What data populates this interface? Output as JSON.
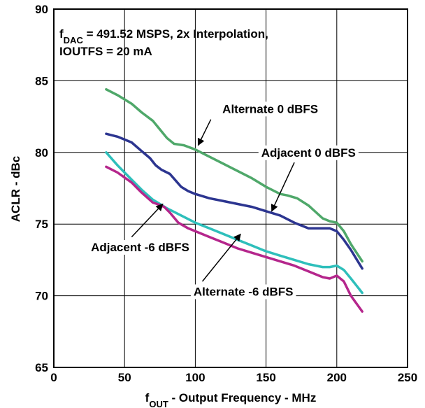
{
  "chart_data": {
    "type": "line",
    "title_lines": [
      {
        "main": "f",
        "sub": "DAC",
        "rest": " = 491.52 MSPS, 2x Interpolation,"
      },
      {
        "main": "IOUTFS = 20 mA",
        "sub": "",
        "rest": ""
      }
    ],
    "xlabel": {
      "main": "f",
      "sub": "OUT",
      "rest": " - Output Frequency - MHz"
    },
    "ylabel": "ACLR - dBc",
    "xlim": [
      0,
      250
    ],
    "ylim": [
      65,
      90
    ],
    "x_ticks": [
      0,
      50,
      100,
      150,
      200,
      250
    ],
    "y_ticks": [
      65,
      70,
      75,
      80,
      85,
      90
    ],
    "x_tick_labels": [
      "0",
      "50",
      "100",
      "150",
      "200",
      "250"
    ],
    "y_tick_labels": [
      "65",
      "70",
      "75",
      "80",
      "85",
      "90"
    ],
    "grid": true,
    "series": [
      {
        "id": "alternate-0dbfs",
        "color": "#4fa86a",
        "x": [
          37,
          45,
          55,
          62,
          70,
          75,
          80,
          85,
          92,
          100,
          110,
          120,
          130,
          140,
          150,
          160,
          165,
          172,
          180,
          190,
          195,
          200,
          205,
          210,
          218
        ],
        "y": [
          84.4,
          84.0,
          83.4,
          82.8,
          82.2,
          81.6,
          81.0,
          80.6,
          80.5,
          80.2,
          79.7,
          79.2,
          78.7,
          78.2,
          77.6,
          77.1,
          77.0,
          76.8,
          76.3,
          75.4,
          75.2,
          75.1,
          74.5,
          73.6,
          72.4
        ]
      },
      {
        "id": "adjacent-0dbfs",
        "color": "#2c3590",
        "x": [
          37,
          45,
          55,
          62,
          68,
          72,
          76,
          82,
          90,
          95,
          100,
          110,
          120,
          130,
          140,
          150,
          160,
          170,
          180,
          190,
          195,
          200,
          205,
          210,
          218
        ],
        "y": [
          81.3,
          81.1,
          80.7,
          80.1,
          79.6,
          79.1,
          78.8,
          78.5,
          77.6,
          77.3,
          77.1,
          76.8,
          76.6,
          76.4,
          76.2,
          75.9,
          75.6,
          75.1,
          74.7,
          74.7,
          74.7,
          74.5,
          73.9,
          73.2,
          71.9
        ]
      },
      {
        "id": "alternate-neg6dbfs",
        "color": "#2ebfbb",
        "x": [
          37,
          45,
          50,
          55,
          62,
          70,
          75,
          80,
          90,
          100,
          110,
          120,
          130,
          140,
          150,
          160,
          170,
          180,
          190,
          195,
          200,
          205,
          210,
          218
        ],
        "y": [
          80.0,
          79.1,
          78.6,
          78.1,
          77.4,
          76.7,
          76.4,
          76.1,
          75.6,
          75.1,
          74.7,
          74.3,
          73.9,
          73.5,
          73.1,
          72.8,
          72.5,
          72.2,
          72.0,
          72.0,
          72.1,
          71.8,
          71.2,
          70.2
        ]
      },
      {
        "id": "adjacent-neg6dbfs",
        "color": "#b5268c",
        "x": [
          37,
          45,
          55,
          62,
          70,
          73,
          78,
          82,
          88,
          95,
          100,
          110,
          120,
          130,
          140,
          150,
          160,
          170,
          180,
          190,
          195,
          200,
          205,
          210,
          218
        ],
        "y": [
          79.0,
          78.6,
          77.9,
          77.2,
          76.5,
          76.4,
          76.2,
          75.8,
          75.1,
          74.7,
          74.5,
          74.1,
          73.7,
          73.3,
          73.0,
          72.7,
          72.4,
          72.1,
          71.7,
          71.3,
          71.2,
          71.4,
          71.0,
          70.0,
          68.9
        ]
      }
    ],
    "annotations": [
      {
        "id": "alternate-0dbfs-label",
        "text": "Alternate 0 dBFS",
        "x": 153,
        "y": 83.05,
        "arrow_from": [
          111,
          82.3
        ],
        "arrow_to": [
          102,
          80.5
        ]
      },
      {
        "id": "adjacent-0dbfs-label",
        "text": "Adjacent 0 dBFS",
        "x": 180,
        "y": 80.0,
        "arrow_from": [
          170,
          79.3
        ],
        "arrow_to": [
          154,
          75.9
        ]
      },
      {
        "id": "adjacent-neg6dbfs-label",
        "text": "Adjacent -6 dBFS",
        "x": 61,
        "y": 73.4,
        "arrow_from": [
          55,
          74.1
        ],
        "arrow_to": [
          77,
          76.4
        ]
      },
      {
        "id": "alternate-neg6dbfs-label",
        "text": "Alternate -6 dBFS",
        "x": 134,
        "y": 70.3,
        "arrow_from": [
          105,
          71.0
        ],
        "arrow_to": [
          132,
          74.3
        ]
      }
    ]
  }
}
